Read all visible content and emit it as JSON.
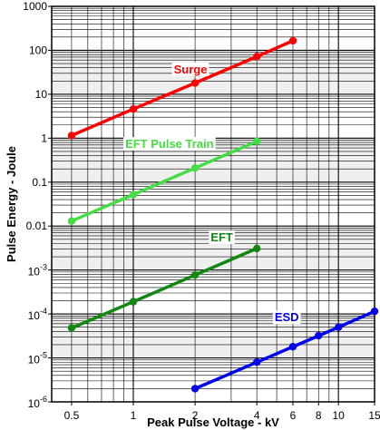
{
  "chart_data": {
    "type": "line",
    "xlabel": "Peak Pulse Voltage - kV",
    "ylabel": "Pulse Energy - Joule",
    "xscale": "log",
    "yscale": "log",
    "xlim": [
      0.4,
      15
    ],
    "ylim": [
      1e-06,
      1000
    ],
    "grid": true,
    "legend": "inline labels",
    "x_ticks": [
      {
        "value": 0.5,
        "label": "0.5"
      },
      {
        "value": 1,
        "label": "1"
      },
      {
        "value": 2,
        "label": "2"
      },
      {
        "value": 4,
        "label": "4"
      },
      {
        "value": 6,
        "label": "6"
      },
      {
        "value": 8,
        "label": "8"
      },
      {
        "value": 10,
        "label": "10"
      },
      {
        "value": 15,
        "label": "15"
      }
    ],
    "y_ticks": [
      {
        "value": 1000,
        "label": "1000"
      },
      {
        "value": 100,
        "label": "100"
      },
      {
        "value": 10,
        "label": "10"
      },
      {
        "value": 1,
        "label": "1"
      },
      {
        "value": 0.1,
        "label": "0.1"
      },
      {
        "value": 0.01,
        "label": "0.01"
      },
      {
        "value": 0.001,
        "base": "10",
        "exp": "-3"
      },
      {
        "value": 0.0001,
        "base": "10",
        "exp": "-4"
      },
      {
        "value": 1e-05,
        "base": "10",
        "exp": "-5"
      },
      {
        "value": 1e-06,
        "base": "10",
        "exp": "-6"
      }
    ],
    "series": [
      {
        "name": "Surge",
        "color": "#ff0000",
        "label_at": [
          1.9,
          30
        ],
        "points": [
          [
            0.5,
            1.15
          ],
          [
            1,
            4.6
          ],
          [
            2,
            18
          ],
          [
            4,
            72
          ],
          [
            6,
            165
          ]
        ]
      },
      {
        "name": "EFT Pulse Train",
        "color": "#44dd44",
        "label_at": [
          1.5,
          0.6
        ],
        "points": [
          [
            0.5,
            0.013
          ],
          [
            1,
            0.052
          ],
          [
            2,
            0.21
          ],
          [
            4,
            0.85
          ]
        ]
      },
      {
        "name": "EFT",
        "color": "#118811",
        "label_at": [
          2.7,
          0.0045
        ],
        "points": [
          [
            0.5,
            4.8e-05
          ],
          [
            1,
            0.00019
          ],
          [
            2,
            0.00077
          ],
          [
            4,
            0.0031
          ]
        ]
      },
      {
        "name": "ESD",
        "color": "#0000ee",
        "label_at": [
          5.6,
          6.8e-05
        ],
        "points": [
          [
            2,
            2e-06
          ],
          [
            4,
            8e-06
          ],
          [
            6,
            1.8e-05
          ],
          [
            8,
            3.2e-05
          ],
          [
            10,
            5e-05
          ],
          [
            15,
            0.000115
          ]
        ]
      }
    ]
  }
}
